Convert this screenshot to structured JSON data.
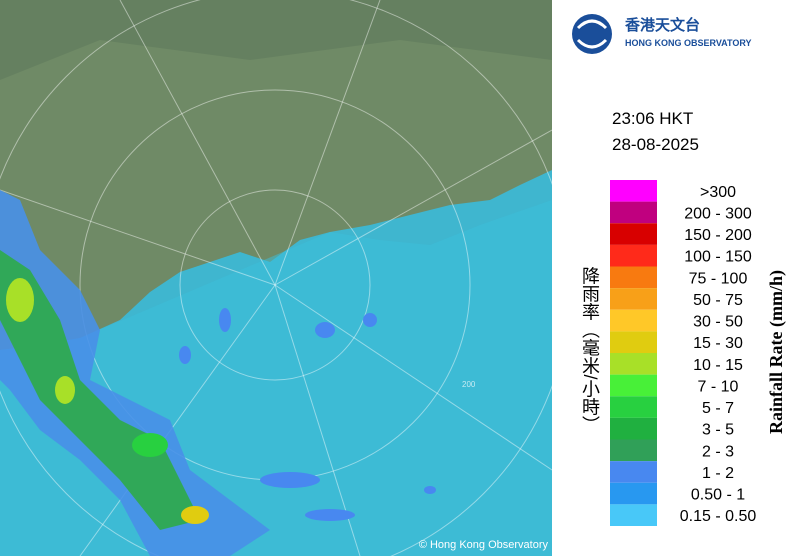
{
  "header": {
    "logo_chinese": "香港天文台",
    "logo_english": "HONG KONG OBSERVATORY"
  },
  "timestamp": {
    "time": "23:06 HKT",
    "date": "28-08-2025"
  },
  "map": {
    "range_label": "200",
    "copyright": "© Hong Kong Observatory"
  },
  "legend": {
    "title_chinese": "降雨率（毫米/小時）",
    "title_english": "Rainfall Rate (mm/h)",
    "items": [
      {
        "label": ">300",
        "color": "#ff00ff"
      },
      {
        "label": "200 - 300",
        "color": "#c0007f"
      },
      {
        "label": "150 - 200",
        "color": "#d80000"
      },
      {
        "label": "100 - 150",
        "color": "#ff2a1a"
      },
      {
        "label": "75 - 100",
        "color": "#f87a10"
      },
      {
        "label": "50 - 75",
        "color": "#f8a018"
      },
      {
        "label": "30 - 50",
        "color": "#ffc828"
      },
      {
        "label": "15 - 30",
        "color": "#e0cc10"
      },
      {
        "label": "10 - 15",
        "color": "#a8e028"
      },
      {
        "label": "7 - 10",
        "color": "#48f038"
      },
      {
        "label": "5 - 7",
        "color": "#28d040"
      },
      {
        "label": "3 - 5",
        "color": "#20b040"
      },
      {
        "label": "2 - 3",
        "color": "#30a058"
      },
      {
        "label": "1 - 2",
        "color": "#4888f0"
      },
      {
        "label": "0.50 - 1",
        "color": "#2898f0"
      },
      {
        "label": "0.15 - 0.50",
        "color": "#48c8f8"
      }
    ]
  }
}
